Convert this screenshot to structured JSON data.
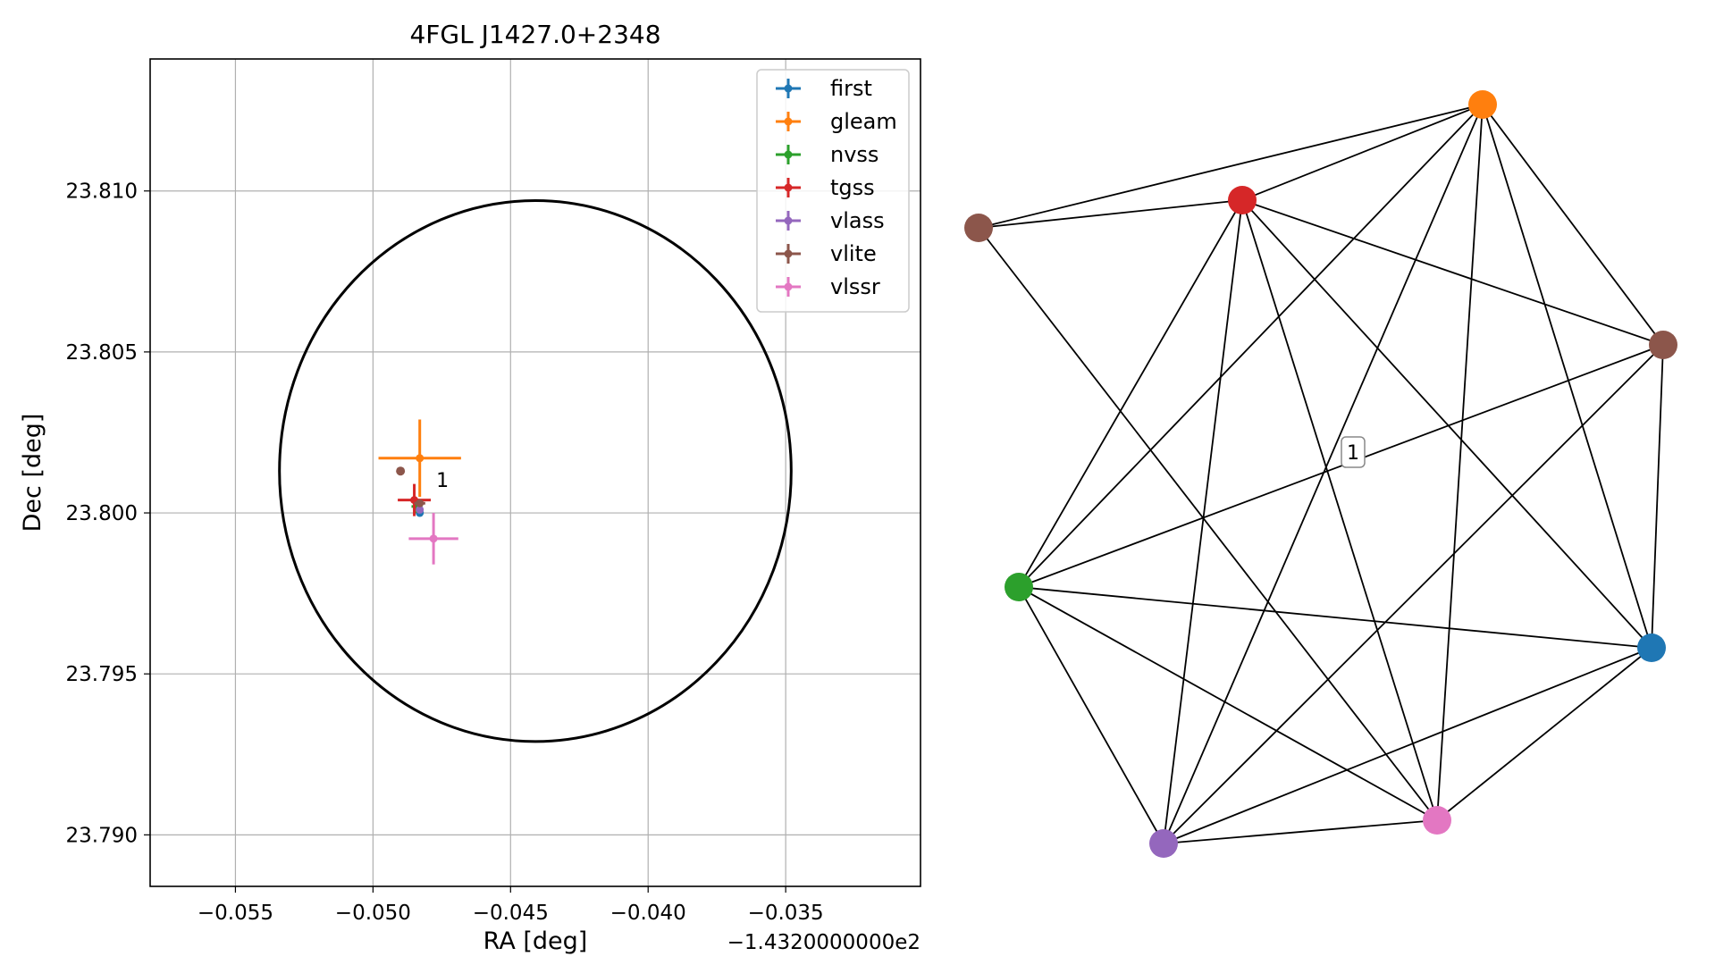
{
  "chart_data": [
    {
      "type": "scatter",
      "title": "4FGL J1427.0+2348",
      "xlabel": "RA [deg]",
      "ylabel": "Dec [deg]",
      "x_offset_label": "−1.4320000000e2",
      "x_offset": -143.2,
      "xlim": [
        -0.0581,
        -0.0301
      ],
      "ylim": [
        23.7884,
        23.8141
      ],
      "xticks": [
        -0.055,
        -0.05,
        -0.045,
        -0.04,
        -0.035
      ],
      "xtick_labels": [
        "−0.055",
        "−0.050",
        "−0.045",
        "−0.040",
        "−0.035"
      ],
      "yticks": [
        23.79,
        23.795,
        23.8,
        23.805,
        23.81
      ],
      "ytick_labels": [
        "23.790",
        "23.795",
        "23.800",
        "23.805",
        "23.810"
      ],
      "grid": true,
      "legend_position": "top-right",
      "circle": {
        "center": [
          -0.0441,
          23.8013
        ],
        "radius_x": 0.0093,
        "radius_y": 0.0084,
        "color": "#000000"
      },
      "annotations": [
        {
          "text": "1",
          "x": -0.0477,
          "y": 23.8008
        }
      ],
      "series": [
        {
          "name": "first",
          "color": "#1f77b4",
          "x": -0.0483,
          "y": 23.8,
          "xerr": 0.0001,
          "yerr": 0.0001
        },
        {
          "name": "gleam",
          "color": "#ff7f0e",
          "x": -0.0483,
          "y": 23.8017,
          "xerr": 0.0015,
          "yerr": 0.0012
        },
        {
          "name": "nvss",
          "color": "#2ca02c",
          "x": -0.0484,
          "y": 23.8002,
          "xerr": 0.0002,
          "yerr": 0.0002
        },
        {
          "name": "tgss",
          "color": "#d62728",
          "x": -0.0485,
          "y": 23.8004,
          "xerr": 0.0006,
          "yerr": 0.0005
        },
        {
          "name": "vlass",
          "color": "#9467bd",
          "x": -0.0483,
          "y": 23.8001,
          "xerr": 5e-05,
          "yerr": 5e-05
        },
        {
          "name": "vlite",
          "color": "#8c564b",
          "x": -0.0483,
          "y": 23.8003,
          "xerr": 0.0002,
          "yerr": 0.0001
        },
        {
          "name": "vlssr",
          "color": "#e377c2",
          "x": -0.0478,
          "y": 23.7992,
          "xerr": 0.0009,
          "yerr": 0.0008
        }
      ],
      "extra_points": [
        {
          "x": -0.049,
          "y": 23.8013,
          "color": "#8c564b"
        }
      ]
    },
    {
      "type": "network",
      "edge_label": "1",
      "edge_color": "#000000",
      "nodes": [
        {
          "id": "first",
          "color": "#1f77b4"
        },
        {
          "id": "gleam",
          "color": "#ff7f0e"
        },
        {
          "id": "nvss",
          "color": "#2ca02c"
        },
        {
          "id": "tgss",
          "color": "#d62728"
        },
        {
          "id": "vlass",
          "color": "#9467bd"
        },
        {
          "id": "vlite",
          "color": "#8c564b"
        },
        {
          "id": "vlssr",
          "color": "#e377c2"
        },
        {
          "id": "vlite-extra",
          "color": "#8c564b"
        }
      ],
      "edges": [
        [
          "gleam",
          "vlite-extra"
        ],
        [
          "gleam",
          "tgss"
        ],
        [
          "gleam",
          "vlite"
        ],
        [
          "gleam",
          "first"
        ],
        [
          "gleam",
          "nvss"
        ],
        [
          "gleam",
          "vlass"
        ],
        [
          "gleam",
          "vlssr"
        ],
        [
          "tgss",
          "vlite-extra"
        ],
        [
          "tgss",
          "vlite"
        ],
        [
          "tgss",
          "first"
        ],
        [
          "tgss",
          "nvss"
        ],
        [
          "tgss",
          "vlass"
        ],
        [
          "tgss",
          "vlssr"
        ],
        [
          "vlite-extra",
          "vlssr"
        ],
        [
          "vlite",
          "nvss"
        ],
        [
          "vlite",
          "first"
        ],
        [
          "vlite",
          "vlass"
        ],
        [
          "nvss",
          "first"
        ],
        [
          "nvss",
          "vlssr"
        ],
        [
          "nvss",
          "vlass"
        ],
        [
          "first",
          "vlssr"
        ],
        [
          "first",
          "vlass"
        ],
        [
          "vlass",
          "vlssr"
        ]
      ]
    }
  ]
}
